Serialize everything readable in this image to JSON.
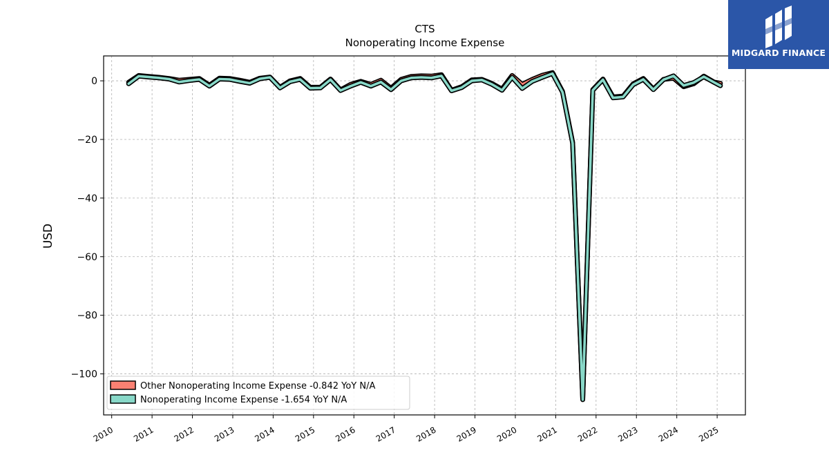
{
  "brand": {
    "name": "MIDGARD FINANCE",
    "icon": "midgard-logo-icon",
    "color": "#2b56a8"
  },
  "chart_data": {
    "type": "line",
    "title": "CTS",
    "subtitle": "Nonoperating Income Expense",
    "xlabel": "",
    "ylabel": "USD",
    "xlim": [
      2009.8,
      2025.7
    ],
    "ylim": [
      -114,
      8.5
    ],
    "x_ticks": [
      "2010",
      "2011",
      "2012",
      "2013",
      "2014",
      "2015",
      "2016",
      "2017",
      "2018",
      "2019",
      "2020",
      "2021",
      "2022",
      "2023",
      "2024",
      "2025"
    ],
    "y_ticks": [
      0,
      -20,
      -40,
      -60,
      -80,
      -100
    ],
    "y_tick_labels": [
      "0",
      "−20",
      "−40",
      "−60",
      "−80",
      "−100"
    ],
    "grid": true,
    "legend_position": "lower-left",
    "x": [
      2010.42,
      2010.67,
      2010.92,
      2011.17,
      2011.42,
      2011.67,
      2011.92,
      2012.17,
      2012.42,
      2012.67,
      2012.92,
      2013.17,
      2013.42,
      2013.67,
      2013.92,
      2014.17,
      2014.42,
      2014.67,
      2014.92,
      2015.17,
      2015.42,
      2015.67,
      2015.92,
      2016.17,
      2016.42,
      2016.67,
      2016.92,
      2017.17,
      2017.42,
      2017.67,
      2017.92,
      2018.17,
      2018.42,
      2018.67,
      2018.92,
      2019.17,
      2019.42,
      2019.67,
      2019.92,
      2020.17,
      2020.42,
      2020.67,
      2020.92,
      2021.17,
      2021.42,
      2021.67,
      2021.92,
      2022.17,
      2022.42,
      2022.67,
      2022.92,
      2023.17,
      2023.42,
      2023.67,
      2023.92,
      2024.17,
      2024.42,
      2024.67,
      2024.92,
      2025.08
    ],
    "series": [
      {
        "name": "Other Nonoperating Income Expense  -0.842 YoY N/A",
        "color": "#fa8072",
        "values": [
          -0.5,
          1.8,
          1.5,
          1.2,
          0.8,
          0.2,
          0.5,
          0.8,
          -1.5,
          0.9,
          0.8,
          0.2,
          -0.5,
          0.9,
          1.3,
          -2.2,
          0.0,
          0.8,
          -2.2,
          -2.2,
          0.6,
          -3.1,
          -1.2,
          -0.2,
          -1.2,
          0.2,
          -2.5,
          0.5,
          1.5,
          1.7,
          1.6,
          2.1,
          -3.2,
          -2.0,
          0.3,
          0.5,
          -0.9,
          -2.8,
          1.8,
          -1.2,
          0.5,
          1.9,
          2.8,
          -3.6,
          -21.0,
          -108.5,
          -3.0,
          0.6,
          -5.5,
          -5.2,
          -1.0,
          0.8,
          -2.8,
          0.5,
          0.9,
          -2.0,
          -1.0,
          1.6,
          -0.4,
          -0.842
        ]
      },
      {
        "name": "Nonoperating Income Expense  -1.654 YoY N/A",
        "color": "#88d8c8",
        "values": [
          -1.0,
          1.6,
          1.3,
          1.0,
          0.6,
          -0.4,
          0.1,
          0.5,
          -1.8,
          0.6,
          0.5,
          -0.2,
          -0.8,
          0.7,
          1.2,
          -2.4,
          -0.3,
          0.5,
          -2.5,
          -2.4,
          0.4,
          -3.3,
          -1.8,
          -0.5,
          -1.8,
          -0.4,
          -3.0,
          0.0,
          1.0,
          1.2,
          1.0,
          1.7,
          -3.4,
          -2.3,
          0.0,
          0.3,
          -1.2,
          -3.2,
          1.2,
          -2.6,
          -0.2,
          1.2,
          2.5,
          -3.9,
          -21.3,
          -108.8,
          -3.2,
          0.4,
          -5.8,
          -5.5,
          -1.3,
          0.5,
          -3.0,
          0.4,
          1.7,
          -1.6,
          -0.6,
          1.4,
          -0.5,
          -1.654
        ]
      }
    ]
  }
}
